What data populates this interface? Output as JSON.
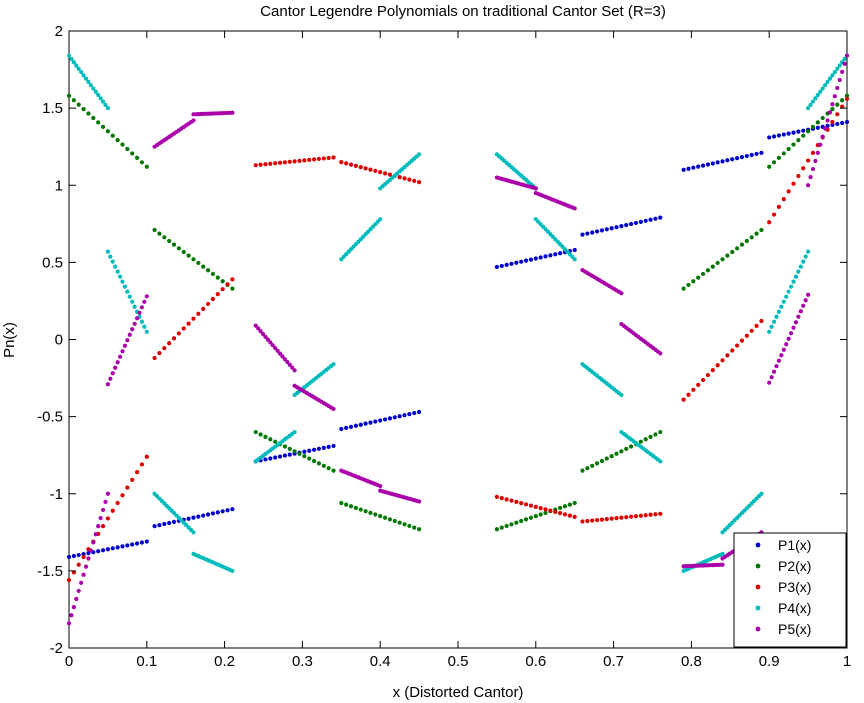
{
  "chart_data": {
    "type": "scatter",
    "title": "Cantor Legendre Polynomials on traditional Cantor Set (R=3)",
    "xlabel": "x (Distorted Cantor)",
    "ylabel": "Pn(x)",
    "xlim": [
      0,
      1
    ],
    "ylim": [
      -2,
      2
    ],
    "xticks": [
      "0",
      "0.1",
      "0.2",
      "0.3",
      "0.4",
      "0.5",
      "0.6",
      "0.7",
      "0.8",
      "0.9",
      "1"
    ],
    "yticks": [
      "-2",
      "-1.5",
      "-1",
      "-0.5",
      "0",
      "0.5",
      "1",
      "1.5",
      "2"
    ],
    "grid": false,
    "legend_position": "bottom-right",
    "series": [
      {
        "name": "P1(x)",
        "color": "#0000cc",
        "segments": [
          {
            "x": [
              0.0,
              0.1
            ],
            "y": [
              -1.41,
              -1.31
            ]
          },
          {
            "x": [
              0.11,
              0.21
            ],
            "y": [
              -1.21,
              -1.1
            ]
          },
          {
            "x": [
              0.24,
              0.34
            ],
            "y": [
              -0.79,
              -0.69
            ]
          },
          {
            "x": [
              0.35,
              0.45
            ],
            "y": [
              -0.58,
              -0.47
            ]
          },
          {
            "x": [
              0.55,
              0.65
            ],
            "y": [
              0.47,
              0.58
            ]
          },
          {
            "x": [
              0.66,
              0.76
            ],
            "y": [
              0.68,
              0.79
            ]
          },
          {
            "x": [
              0.79,
              0.89
            ],
            "y": [
              1.1,
              1.21
            ]
          },
          {
            "x": [
              0.9,
              1.0
            ],
            "y": [
              1.31,
              1.41
            ]
          }
        ]
      },
      {
        "name": "P2(x)",
        "color": "#007700",
        "segments": [
          {
            "x": [
              0.0,
              0.1
            ],
            "y": [
              1.58,
              1.12
            ]
          },
          {
            "x": [
              0.11,
              0.21
            ],
            "y": [
              0.71,
              0.33
            ]
          },
          {
            "x": [
              0.24,
              0.34
            ],
            "y": [
              -0.6,
              -0.85
            ]
          },
          {
            "x": [
              0.35,
              0.45
            ],
            "y": [
              -1.06,
              -1.23
            ]
          },
          {
            "x": [
              0.55,
              0.65
            ],
            "y": [
              -1.23,
              -1.06
            ]
          },
          {
            "x": [
              0.66,
              0.76
            ],
            "y": [
              -0.85,
              -0.6
            ]
          },
          {
            "x": [
              0.79,
              0.89
            ],
            "y": [
              0.33,
              0.71
            ]
          },
          {
            "x": [
              0.9,
              1.0
            ],
            "y": [
              1.12,
              1.58
            ]
          }
        ]
      },
      {
        "name": "P3(x)",
        "color": "#dd0000",
        "segments": [
          {
            "x": [
              0.0,
              0.1
            ],
            "y": [
              -1.56,
              -0.76
            ]
          },
          {
            "x": [
              0.11,
              0.21
            ],
            "y": [
              -0.12,
              0.39
            ]
          },
          {
            "x": [
              0.24,
              0.34
            ],
            "y": [
              1.13,
              1.18
            ]
          },
          {
            "x": [
              0.35,
              0.45
            ],
            "y": [
              1.15,
              1.02
            ]
          },
          {
            "x": [
              0.55,
              0.65
            ],
            "y": [
              -1.02,
              -1.15
            ]
          },
          {
            "x": [
              0.66,
              0.76
            ],
            "y": [
              -1.18,
              -1.13
            ]
          },
          {
            "x": [
              0.79,
              0.89
            ],
            "y": [
              -0.39,
              0.12
            ]
          },
          {
            "x": [
              0.9,
              1.0
            ],
            "y": [
              0.76,
              1.56
            ]
          }
        ]
      },
      {
        "name": "P4(x)",
        "color": "#00bbbb",
        "segments": [
          {
            "x": [
              0.0,
              0.05
            ],
            "y": [
              1.84,
              1.5
            ]
          },
          {
            "x": [
              0.05,
              0.1
            ],
            "y": [
              0.57,
              0.05
            ]
          },
          {
            "x": [
              0.11,
              0.16
            ],
            "y": [
              -1.0,
              -1.25
            ]
          },
          {
            "x": [
              0.16,
              0.21
            ],
            "y": [
              -1.39,
              -1.5
            ]
          },
          {
            "x": [
              0.24,
              0.29
            ],
            "y": [
              -0.79,
              -0.6
            ]
          },
          {
            "x": [
              0.29,
              0.34
            ],
            "y": [
              -0.36,
              -0.16
            ]
          },
          {
            "x": [
              0.35,
              0.4
            ],
            "y": [
              0.52,
              0.78
            ]
          },
          {
            "x": [
              0.4,
              0.45
            ],
            "y": [
              0.98,
              1.2
            ]
          },
          {
            "x": [
              0.55,
              0.6
            ],
            "y": [
              1.2,
              0.98
            ]
          },
          {
            "x": [
              0.6,
              0.65
            ],
            "y": [
              0.78,
              0.52
            ]
          },
          {
            "x": [
              0.66,
              0.71
            ],
            "y": [
              -0.16,
              -0.36
            ]
          },
          {
            "x": [
              0.71,
              0.76
            ],
            "y": [
              -0.6,
              -0.79
            ]
          },
          {
            "x": [
              0.79,
              0.84
            ],
            "y": [
              -1.5,
              -1.39
            ]
          },
          {
            "x": [
              0.84,
              0.89
            ],
            "y": [
              -1.25,
              -1.0
            ]
          },
          {
            "x": [
              0.9,
              0.95
            ],
            "y": [
              0.05,
              0.57
            ]
          },
          {
            "x": [
              0.95,
              1.0
            ],
            "y": [
              1.5,
              1.84
            ]
          }
        ]
      },
      {
        "name": "P5(x)",
        "color": "#aa00aa",
        "segments": [
          {
            "x": [
              0.0,
              0.05
            ],
            "y": [
              -1.84,
              -1.0
            ]
          },
          {
            "x": [
              0.05,
              0.1
            ],
            "y": [
              -0.29,
              0.28
            ]
          },
          {
            "x": [
              0.11,
              0.16
            ],
            "y": [
              1.25,
              1.42
            ]
          },
          {
            "x": [
              0.16,
              0.21
            ],
            "y": [
              1.46,
              1.47
            ]
          },
          {
            "x": [
              0.24,
              0.29
            ],
            "y": [
              0.09,
              -0.2
            ]
          },
          {
            "x": [
              0.29,
              0.34
            ],
            "y": [
              -0.3,
              -0.45
            ]
          },
          {
            "x": [
              0.35,
              0.4
            ],
            "y": [
              -0.85,
              -0.95
            ]
          },
          {
            "x": [
              0.4,
              0.45
            ],
            "y": [
              -0.98,
              -1.05
            ]
          },
          {
            "x": [
              0.55,
              0.6
            ],
            "y": [
              1.05,
              0.98
            ]
          },
          {
            "x": [
              0.6,
              0.65
            ],
            "y": [
              0.95,
              0.85
            ]
          },
          {
            "x": [
              0.66,
              0.71
            ],
            "y": [
              0.45,
              0.3
            ]
          },
          {
            "x": [
              0.71,
              0.76
            ],
            "y": [
              0.1,
              -0.09
            ]
          },
          {
            "x": [
              0.79,
              0.84
            ],
            "y": [
              -1.47,
              -1.46
            ]
          },
          {
            "x": [
              0.84,
              0.89
            ],
            "y": [
              -1.42,
              -1.25
            ]
          },
          {
            "x": [
              0.9,
              0.95
            ],
            "y": [
              -0.28,
              0.29
            ]
          },
          {
            "x": [
              0.95,
              1.0
            ],
            "y": [
              1.0,
              1.84
            ]
          }
        ]
      }
    ]
  }
}
